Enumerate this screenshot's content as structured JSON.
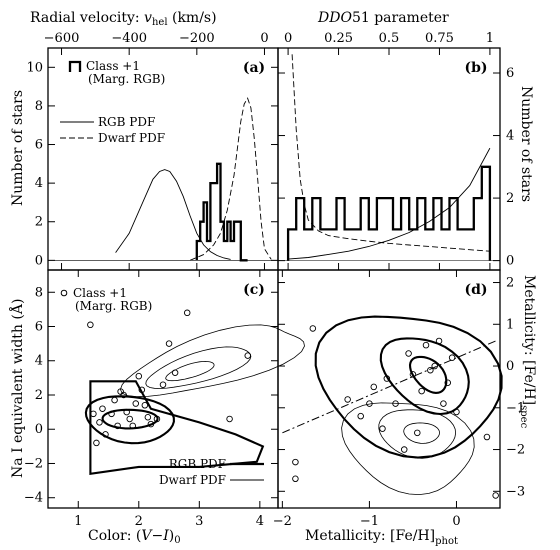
{
  "figure": {
    "top_xlabel_a": "Radial velocity: v_hel (km/s)",
    "top_xlabel_b": "DDO51 parameter",
    "bottom_xlabel_c": "Color: (V−I)₀",
    "bottom_xlabel_d": "Metallicity: [Fe/H]phot",
    "ylabel_a": "Number of stars",
    "ylabel_b": "Number of stars",
    "ylabel_c": "Na I equivalent width (Å)",
    "ylabel_d": "Metallicity: [Fe/H]spec"
  },
  "chart_data": [
    {
      "panel": "(a)",
      "type": "histogram+line",
      "xlabel": "Radial velocity: v_hel (km/s)",
      "ylabel": "Number of stars",
      "xlim": [
        -640,
        40
      ],
      "ylim": [
        -0.5,
        11
      ],
      "xticks": [
        -600,
        -400,
        -200,
        0
      ],
      "yticks": [
        0,
        2,
        4,
        6,
        8,
        10
      ],
      "legend": {
        "histogram": "Class +1\n(Marg. RGB)",
        "rgb": "RGB PDF",
        "dwarf": "Dwarf PDF"
      },
      "histogram": {
        "name": "Class +1 (Marg. RGB)",
        "edges": [
          -200,
          -190,
          -180,
          -170,
          -160,
          -150,
          -140,
          -130,
          -120,
          -110,
          -100,
          -90,
          -80,
          -70,
          -60,
          -50
        ],
        "counts": [
          1,
          2,
          3,
          1,
          4,
          4,
          5,
          2,
          1,
          2,
          1,
          2,
          2,
          0,
          0
        ]
      },
      "series": [
        {
          "name": "RGB PDF",
          "style": "solid-thin",
          "x": [
            -440,
            -400,
            -360,
            -330,
            -310,
            -295,
            -280,
            -260,
            -240,
            -220,
            -200,
            -180,
            -160,
            -140,
            -120,
            -100
          ],
          "y": [
            0.4,
            1.4,
            3.0,
            4.2,
            4.6,
            4.7,
            4.6,
            4.1,
            3.3,
            2.3,
            1.4,
            0.8,
            0.45,
            0.25,
            0.12,
            0.05
          ]
        },
        {
          "name": "Dwarf PDF",
          "style": "dashed",
          "x": [
            -220,
            -180,
            -150,
            -130,
            -110,
            -90,
            -80,
            -70,
            -60,
            -50,
            -40,
            -30,
            -20,
            -10,
            0,
            20
          ],
          "y": [
            0.0,
            0.3,
            0.8,
            1.4,
            2.6,
            4.4,
            5.8,
            7.2,
            8.1,
            8.4,
            7.9,
            6.3,
            4.2,
            2.0,
            0.6,
            0.05
          ]
        }
      ]
    },
    {
      "panel": "(b)",
      "type": "histogram+line",
      "xlabel": "DDO51 parameter",
      "ylabel": "Number of stars",
      "xlim": [
        -0.05,
        1.05
      ],
      "ylim": [
        -0.3,
        6.8
      ],
      "xticks": [
        0,
        0.25,
        0.5,
        0.75,
        1
      ],
      "yticks": [
        0,
        2,
        4,
        6
      ],
      "histogram": {
        "name": "Class +1 (Marg. RGB)",
        "edges": [
          0.0,
          0.04,
          0.08,
          0.12,
          0.16,
          0.2,
          0.24,
          0.28,
          0.32,
          0.36,
          0.4,
          0.44,
          0.48,
          0.52,
          0.56,
          0.6,
          0.64,
          0.68,
          0.72,
          0.76,
          0.8,
          0.84,
          0.88,
          0.92,
          0.96,
          1.0
        ],
        "counts": [
          1,
          2,
          1,
          2,
          1,
          1,
          2,
          1,
          1,
          2,
          1,
          2,
          2,
          1,
          2,
          1,
          2,
          1,
          2,
          1,
          2,
          1,
          1,
          2,
          3
        ]
      },
      "series": [
        {
          "name": "RGB PDF",
          "style": "solid-thin",
          "x": [
            0.0,
            0.1,
            0.2,
            0.3,
            0.4,
            0.5,
            0.6,
            0.7,
            0.8,
            0.9,
            1.0
          ],
          "y": [
            0.05,
            0.1,
            0.2,
            0.3,
            0.45,
            0.65,
            0.9,
            1.25,
            1.7,
            2.4,
            3.6
          ]
        },
        {
          "name": "Dwarf PDF",
          "style": "dashed",
          "x": [
            0.02,
            0.04,
            0.06,
            0.08,
            0.1,
            0.15,
            0.2,
            0.3,
            0.4,
            0.5,
            0.6,
            0.7,
            0.8,
            0.9,
            1.0
          ],
          "y": [
            6.6,
            4.2,
            2.6,
            1.8,
            1.3,
            0.95,
            0.8,
            0.7,
            0.62,
            0.55,
            0.5,
            0.45,
            0.4,
            0.35,
            0.3
          ]
        }
      ]
    },
    {
      "panel": "(c)",
      "type": "scatter+contour",
      "xlabel": "Color: (V−I)₀",
      "ylabel": "Na I equivalent width (Å)",
      "xlim": [
        0.5,
        4.3
      ],
      "ylim": [
        -4.6,
        9.3
      ],
      "xticks": [
        1,
        2,
        3,
        4
      ],
      "yticks": [
        -4,
        -2,
        0,
        2,
        4,
        6,
        8
      ],
      "legend": {
        "points": "Class +1\n(Marg. RGB)",
        "rgb": "RGB PDF",
        "dwarf": "Dwarf PDF"
      },
      "points": [
        [
          1.2,
          6.1
        ],
        [
          1.25,
          0.9
        ],
        [
          1.3,
          -0.8
        ],
        [
          1.35,
          0.4
        ],
        [
          1.4,
          1.2
        ],
        [
          1.45,
          -0.3
        ],
        [
          1.55,
          0.9
        ],
        [
          1.6,
          1.7
        ],
        [
          1.65,
          0.2
        ],
        [
          1.7,
          2.2
        ],
        [
          1.75,
          2.0
        ],
        [
          1.8,
          1.0
        ],
        [
          1.85,
          0.6
        ],
        [
          1.9,
          0.2
        ],
        [
          1.95,
          1.5
        ],
        [
          2.0,
          3.1
        ],
        [
          2.05,
          2.3
        ],
        [
          2.1,
          1.4
        ],
        [
          2.15,
          0.7
        ],
        [
          2.2,
          0.3
        ],
        [
          2.3,
          0.6
        ],
        [
          2.4,
          2.6
        ],
        [
          2.5,
          5.0
        ],
        [
          2.6,
          3.3
        ],
        [
          2.8,
          6.8
        ],
        [
          3.5,
          0.6
        ],
        [
          3.8,
          4.3
        ]
      ],
      "series": [
        {
          "name": "RGB PDF",
          "style": "solid-thick",
          "levels": [
            "outer",
            "middle",
            "inner"
          ]
        },
        {
          "name": "Dwarf PDF",
          "style": "solid-thin",
          "levels": [
            "outer",
            "middle",
            "inner"
          ]
        }
      ]
    },
    {
      "panel": "(d)",
      "type": "scatter+contour",
      "xlabel": "Metallicity: [Fe/H]phot",
      "ylabel": "Metallicity: [Fe/H]spec",
      "xlim": [
        -2.05,
        0.5
      ],
      "ylim": [
        -3.4,
        2.3
      ],
      "xticks": [
        -2,
        -1,
        0
      ],
      "yticks": [
        -3,
        -2,
        -1,
        0,
        1,
        2
      ],
      "points": [
        [
          -1.65,
          0.9
        ],
        [
          -1.85,
          -2.3
        ],
        [
          -1.85,
          -2.7
        ],
        [
          -1.25,
          -0.8
        ],
        [
          -1.1,
          -1.2
        ],
        [
          -0.95,
          -0.5
        ],
        [
          -0.8,
          -0.3
        ],
        [
          -0.7,
          -0.9
        ],
        [
          -0.6,
          -2.0
        ],
        [
          -0.55,
          0.3
        ],
        [
          -0.5,
          -0.2
        ],
        [
          -0.45,
          -1.6
        ],
        [
          -0.4,
          -0.6
        ],
        [
          -0.35,
          0.5
        ],
        [
          -0.3,
          -0.1
        ],
        [
          -0.25,
          0.0
        ],
        [
          -0.2,
          0.6
        ],
        [
          -0.15,
          -0.9
        ],
        [
          -0.1,
          -0.4
        ],
        [
          -0.05,
          0.2
        ],
        [
          0.0,
          -1.1
        ],
        [
          0.35,
          -1.7
        ],
        [
          0.45,
          -3.1
        ],
        [
          -0.85,
          -1.5
        ],
        [
          -1.0,
          -0.9
        ]
      ],
      "fit_line": {
        "style": "dash-dot",
        "x": [
          -2.0,
          0.45
        ],
        "y": [
          -1.6,
          0.6
        ]
      },
      "series": [
        {
          "name": "RGB PDF",
          "style": "solid-thick",
          "levels": [
            "outer",
            "middle",
            "inner"
          ]
        },
        {
          "name": "Dwarf PDF",
          "style": "solid-thin",
          "levels": [
            "outer",
            "middle",
            "inner"
          ]
        }
      ]
    }
  ]
}
